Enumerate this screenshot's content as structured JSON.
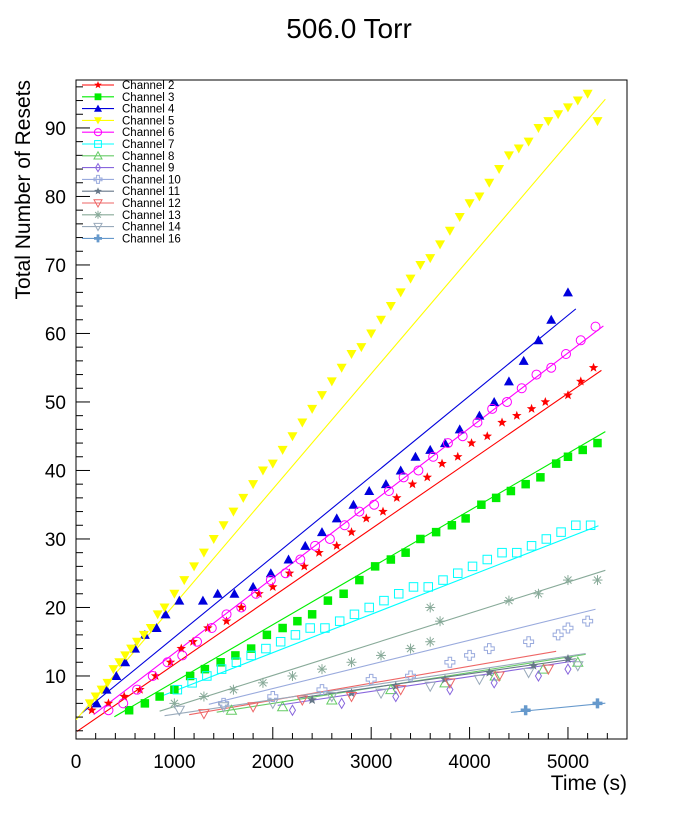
{
  "chart_data": {
    "type": "scatter",
    "title": "506.0 Torr",
    "xlabel": "Time (s)",
    "ylabel": "Total Number of Resets",
    "xlim": [
      0,
      5600
    ],
    "ylim": [
      0.8,
      97
    ],
    "x_ticks": [
      0,
      1000,
      2000,
      3000,
      4000,
      5000
    ],
    "y_ticks": [
      10,
      20,
      30,
      40,
      50,
      60,
      70,
      80,
      90
    ],
    "legend_position": "top-left",
    "series": [
      {
        "name": "Channel 2",
        "color": "#ff0000",
        "marker": "star",
        "fit": [
          0.00989,
          1.8
        ],
        "points": [
          [
            160,
            5
          ],
          [
            330,
            6
          ],
          [
            490,
            7
          ],
          [
            650,
            8
          ],
          [
            810,
            10
          ],
          [
            960,
            12
          ],
          [
            1070,
            14
          ],
          [
            1190,
            15
          ],
          [
            1340,
            17
          ],
          [
            1530,
            18
          ],
          [
            1680,
            20
          ],
          [
            1860,
            22
          ],
          [
            2000,
            23
          ],
          [
            2170,
            25
          ],
          [
            2320,
            26
          ],
          [
            2470,
            28
          ],
          [
            2650,
            29
          ],
          [
            2800,
            31
          ],
          [
            2950,
            33
          ],
          [
            3120,
            34
          ],
          [
            3260,
            36
          ],
          [
            3420,
            38
          ],
          [
            3570,
            39
          ],
          [
            3720,
            41
          ],
          [
            3880,
            42
          ],
          [
            4020,
            44
          ],
          [
            4180,
            45
          ],
          [
            4330,
            47
          ],
          [
            4480,
            48
          ],
          [
            4630,
            49
          ],
          [
            4770,
            50
          ],
          [
            5000,
            51
          ],
          [
            5130,
            53
          ],
          [
            5260,
            55
          ]
        ]
      },
      {
        "name": "Channel 3",
        "color": "#00ee00",
        "marker": "square",
        "fit": [
          0.00834,
          0.8
        ],
        "points": [
          [
            540,
            5
          ],
          [
            700,
            6
          ],
          [
            850,
            7
          ],
          [
            1000,
            8
          ],
          [
            1160,
            10
          ],
          [
            1310,
            11
          ],
          [
            1470,
            12
          ],
          [
            1620,
            13
          ],
          [
            1780,
            14
          ],
          [
            1940,
            16
          ],
          [
            2100,
            17
          ],
          [
            2250,
            18
          ],
          [
            2400,
            19
          ],
          [
            2560,
            21
          ],
          [
            2720,
            22
          ],
          [
            2880,
            24
          ],
          [
            3040,
            26
          ],
          [
            3200,
            27
          ],
          [
            3350,
            28
          ],
          [
            3500,
            30
          ],
          [
            3660,
            31
          ],
          [
            3820,
            32
          ],
          [
            3960,
            33
          ],
          [
            4120,
            35
          ],
          [
            4270,
            36
          ],
          [
            4420,
            37
          ],
          [
            4570,
            38
          ],
          [
            4720,
            39
          ],
          [
            4880,
            41
          ],
          [
            5000,
            42
          ],
          [
            5150,
            43
          ],
          [
            5300,
            44
          ]
        ]
      },
      {
        "name": "Channel 4",
        "color": "#0000dd",
        "marker": "triangle-up",
        "fit": [
          0.01175,
          3.9
        ],
        "points": [
          [
            210,
            6
          ],
          [
            310,
            8
          ],
          [
            410,
            10
          ],
          [
            500,
            12
          ],
          [
            600,
            14
          ],
          [
            700,
            16
          ],
          [
            820,
            17
          ],
          [
            910,
            19
          ],
          [
            1050,
            21
          ],
          [
            1290,
            21
          ],
          [
            1440,
            22
          ],
          [
            1610,
            22
          ],
          [
            1800,
            23
          ],
          [
            1980,
            25
          ],
          [
            2160,
            27
          ],
          [
            2330,
            29
          ],
          [
            2500,
            31
          ],
          [
            2650,
            33
          ],
          [
            2820,
            35
          ],
          [
            2980,
            37
          ],
          [
            3150,
            38
          ],
          [
            3300,
            40
          ],
          [
            3450,
            42
          ],
          [
            3600,
            43
          ],
          [
            3750,
            44
          ],
          [
            3900,
            46
          ],
          [
            4100,
            48
          ],
          [
            4250,
            50
          ],
          [
            4400,
            53
          ],
          [
            4550,
            56
          ],
          [
            4700,
            59
          ],
          [
            4830,
            62
          ],
          [
            5000,
            66
          ]
        ]
      },
      {
        "name": "Channel 5",
        "color": "#ffff00",
        "marker": "triangle-down",
        "fit": [
          0.01684,
          3.6
        ],
        "points": [
          [
            140,
            6
          ],
          [
            200,
            7
          ],
          [
            260,
            8
          ],
          [
            320,
            9
          ],
          [
            380,
            11
          ],
          [
            440,
            12
          ],
          [
            500,
            13
          ],
          [
            560,
            14
          ],
          [
            620,
            15
          ],
          [
            690,
            16
          ],
          [
            760,
            17
          ],
          [
            830,
            19
          ],
          [
            900,
            20
          ],
          [
            1000,
            22
          ],
          [
            1100,
            24
          ],
          [
            1200,
            26
          ],
          [
            1300,
            28
          ],
          [
            1400,
            30
          ],
          [
            1500,
            32
          ],
          [
            1600,
            34
          ],
          [
            1700,
            36
          ],
          [
            1800,
            38
          ],
          [
            1900,
            40
          ],
          [
            2000,
            41
          ],
          [
            2100,
            43
          ],
          [
            2200,
            45
          ],
          [
            2300,
            47
          ],
          [
            2400,
            49
          ],
          [
            2500,
            51
          ],
          [
            2600,
            53
          ],
          [
            2700,
            55
          ],
          [
            2800,
            57
          ],
          [
            2900,
            58
          ],
          [
            3000,
            60
          ],
          [
            3100,
            62
          ],
          [
            3200,
            64
          ],
          [
            3300,
            66
          ],
          [
            3400,
            68
          ],
          [
            3500,
            70
          ],
          [
            3600,
            71
          ],
          [
            3700,
            73
          ],
          [
            3800,
            75
          ],
          [
            3900,
            77
          ],
          [
            4000,
            79
          ],
          [
            4100,
            80
          ],
          [
            4200,
            82
          ],
          [
            4300,
            84
          ],
          [
            4400,
            86
          ],
          [
            4500,
            87
          ],
          [
            4600,
            88
          ],
          [
            4700,
            90
          ],
          [
            4800,
            91
          ],
          [
            4900,
            92
          ],
          [
            5000,
            93
          ],
          [
            5100,
            94
          ],
          [
            5200,
            95
          ],
          [
            5300,
            91
          ]
        ]
      },
      {
        "name": "Channel 6",
        "color": "#ff00ff",
        "marker": "circle-open",
        "fit": [
          0.01095,
          2.4
        ],
        "points": [
          [
            330,
            5
          ],
          [
            480,
            6
          ],
          [
            620,
            8
          ],
          [
            780,
            10
          ],
          [
            930,
            12
          ],
          [
            1080,
            13
          ],
          [
            1230,
            15
          ],
          [
            1380,
            17
          ],
          [
            1530,
            19
          ],
          [
            1680,
            20
          ],
          [
            1830,
            22
          ],
          [
            1980,
            24
          ],
          [
            2130,
            25
          ],
          [
            2280,
            27
          ],
          [
            2430,
            29
          ],
          [
            2580,
            30
          ],
          [
            2730,
            32
          ],
          [
            2880,
            34
          ],
          [
            3030,
            35
          ],
          [
            3180,
            37
          ],
          [
            3330,
            39
          ],
          [
            3480,
            40
          ],
          [
            3630,
            42
          ],
          [
            3780,
            44
          ],
          [
            3930,
            45
          ],
          [
            4080,
            47
          ],
          [
            4230,
            49
          ],
          [
            4380,
            50
          ],
          [
            4530,
            52
          ],
          [
            4680,
            54
          ],
          [
            4830,
            55
          ],
          [
            4980,
            57
          ],
          [
            5130,
            59
          ],
          [
            5280,
            61
          ]
        ]
      },
      {
        "name": "Channel 7",
        "color": "#00ffff",
        "marker": "square-open",
        "fit": [
          0.0056,
          2.2
        ],
        "points": [
          [
            1030,
            8
          ],
          [
            1180,
            9
          ],
          [
            1330,
            10
          ],
          [
            1480,
            11
          ],
          [
            1630,
            12
          ],
          [
            1780,
            13
          ],
          [
            1930,
            14
          ],
          [
            2080,
            15
          ],
          [
            2230,
            16
          ],
          [
            2380,
            17
          ],
          [
            2530,
            17
          ],
          [
            2680,
            18
          ],
          [
            2830,
            19
          ],
          [
            2980,
            20
          ],
          [
            3130,
            21
          ],
          [
            3280,
            22
          ],
          [
            3430,
            23
          ],
          [
            3580,
            23
          ],
          [
            3730,
            24
          ],
          [
            3880,
            25
          ],
          [
            4030,
            26
          ],
          [
            4180,
            27
          ],
          [
            4330,
            28
          ],
          [
            4480,
            28
          ],
          [
            4630,
            29
          ],
          [
            4780,
            30
          ],
          [
            4930,
            31
          ],
          [
            5080,
            32
          ],
          [
            5230,
            32
          ]
        ]
      },
      {
        "name": "Channel 8",
        "color": "#66cc66",
        "marker": "triangle-up-open",
        "fit": [
          0.00225,
          1.5
        ],
        "points": [
          [
            1580,
            5
          ],
          [
            2100,
            5.5
          ],
          [
            2600,
            6.5
          ],
          [
            3200,
            8
          ],
          [
            3750,
            9
          ],
          [
            4260,
            10
          ],
          [
            4750,
            11
          ],
          [
            5100,
            12
          ]
        ]
      },
      {
        "name": "Channel 9",
        "color": "#8866dd",
        "marker": "diamond-open",
        "fit": [
          0.00215,
          1.3
        ],
        "points": [
          [
            2200,
            5
          ],
          [
            2700,
            6
          ],
          [
            3250,
            7
          ],
          [
            3800,
            8
          ],
          [
            4250,
            9
          ],
          [
            4700,
            10
          ],
          [
            5000,
            11
          ]
        ]
      },
      {
        "name": "Channel 10",
        "color": "#99aadd",
        "marker": "cross-open",
        "fit": [
          0.00353,
          1.1
        ],
        "points": [
          [
            1500,
            6
          ],
          [
            2000,
            7
          ],
          [
            2500,
            8
          ],
          [
            3000,
            9.5
          ],
          [
            3400,
            10
          ],
          [
            3800,
            12
          ],
          [
            4000,
            13
          ],
          [
            4200,
            14
          ],
          [
            4600,
            15
          ],
          [
            4900,
            16
          ],
          [
            5000,
            17
          ],
          [
            5200,
            18
          ]
        ]
      },
      {
        "name": "Channel 11",
        "color": "#667788",
        "marker": "star",
        "fit": [
          0.00203,
          2.2
        ],
        "points": [
          [
            2400,
            6.5
          ],
          [
            2800,
            7.5
          ],
          [
            3250,
            8.5
          ],
          [
            3750,
            9.5
          ],
          [
            4200,
            10.5
          ],
          [
            4650,
            11.5
          ],
          [
            5000,
            12.5
          ]
        ]
      },
      {
        "name": "Channel 12",
        "color": "#ee6666",
        "marker": "triangle-down-open",
        "fit": [
          0.00248,
          1.5
        ],
        "points": [
          [
            1300,
            4.5
          ],
          [
            1800,
            5.5
          ],
          [
            2300,
            6.5
          ],
          [
            2800,
            7
          ],
          [
            3300,
            8
          ],
          [
            3800,
            9
          ],
          [
            4300,
            10
          ],
          [
            4800,
            11
          ]
        ]
      },
      {
        "name": "Channel 13",
        "color": "#88aa99",
        "marker": "asterisk",
        "fit": [
          0.00454,
          1.0
        ],
        "points": [
          [
            1000,
            6
          ],
          [
            1300,
            7
          ],
          [
            1600,
            8
          ],
          [
            1900,
            9
          ],
          [
            2200,
            10
          ],
          [
            2500,
            11
          ],
          [
            2800,
            12
          ],
          [
            3100,
            13
          ],
          [
            3400,
            14
          ],
          [
            3600,
            15
          ],
          [
            3700,
            18
          ],
          [
            3600,
            20
          ],
          [
            4400,
            21
          ],
          [
            4700,
            22
          ],
          [
            5000,
            24
          ],
          [
            5300,
            24
          ]
        ]
      },
      {
        "name": "Channel 14",
        "color": "#99aabb",
        "marker": "triangle-down-open",
        "fit": [
          0.00212,
          2.3
        ],
        "points": [
          [
            1050,
            5
          ],
          [
            1500,
            5.5
          ],
          [
            2000,
            6
          ],
          [
            2600,
            7
          ],
          [
            3100,
            7.5
          ],
          [
            3600,
            8.5
          ],
          [
            4100,
            9.5
          ],
          [
            4600,
            10.5
          ],
          [
            5100,
            11.5
          ]
        ]
      },
      {
        "name": "Channel 16",
        "color": "#6699cc",
        "marker": "cross-filled",
        "fit": [
          0.0014,
          -1.5
        ],
        "points": [
          [
            4570,
            5
          ],
          [
            5300,
            6
          ]
        ]
      }
    ]
  }
}
